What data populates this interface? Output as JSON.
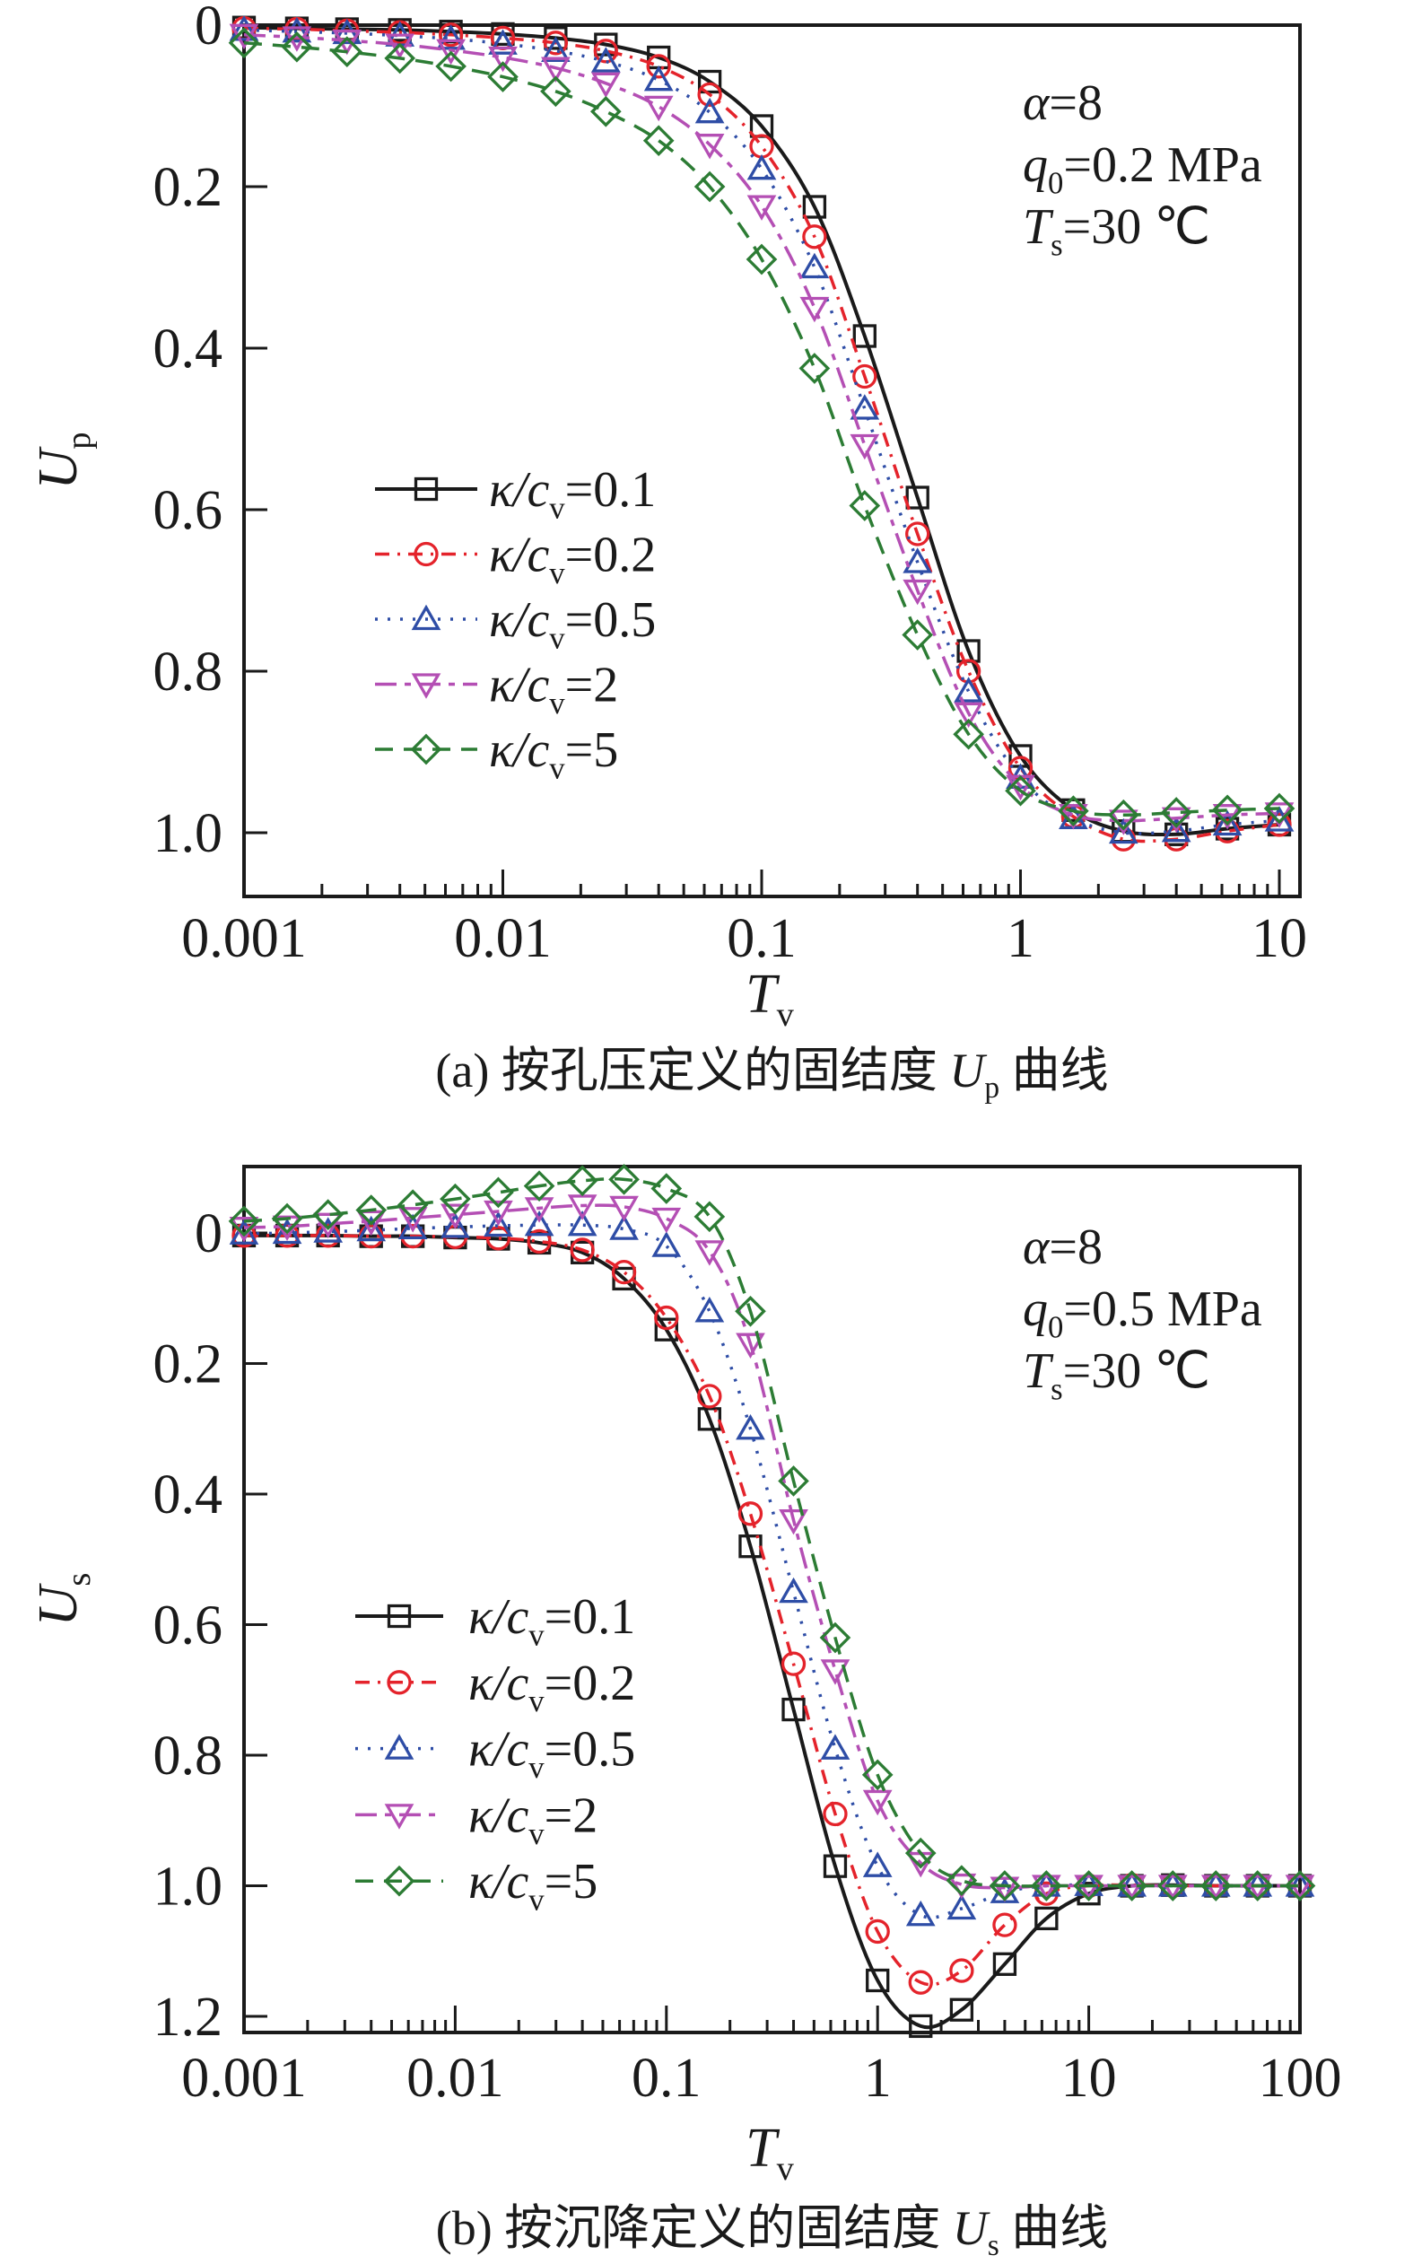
{
  "page": {
    "background": "#ffffff",
    "text_color": "#1a1a1a"
  },
  "chart_data": [
    {
      "type": "line",
      "id": "a",
      "xscale": "log",
      "xlabel": {
        "text": "Tv",
        "parts": [
          {
            "t": "T",
            "i": true
          },
          {
            "t": "v",
            "sub": true
          }
        ]
      },
      "ylabel": {
        "text": "Up",
        "parts": [
          {
            "t": "U",
            "i": true
          },
          {
            "t": "p",
            "sub": true
          }
        ]
      },
      "xlim": [
        0.001,
        12
      ],
      "ylim_top_to_bottom": [
        0,
        1.08
      ],
      "grid": false,
      "x_ticks": {
        "values": [
          0.001,
          0.01,
          0.1,
          1,
          10
        ],
        "labels": [
          "0.001",
          "0.01",
          "0.1",
          "1",
          "10"
        ]
      },
      "y_ticks": {
        "values": [
          0,
          0.2,
          0.4,
          0.6,
          0.8,
          1.0
        ],
        "labels": [
          "0",
          "0.2",
          "0.4",
          "0.6",
          "0.8",
          "1.0"
        ]
      },
      "annotation": {
        "lines": [
          {
            "text": "α=8",
            "parts": [
              {
                "t": "α",
                "i": true
              },
              {
                "t": "=8"
              }
            ]
          },
          {
            "text": "q0=0.2 MPa",
            "parts": [
              {
                "t": "q",
                "i": true
              },
              {
                "t": "0",
                "sub": true
              },
              {
                "t": "=0.2 MPa"
              }
            ]
          },
          {
            "text": "Ts=30 ℃",
            "parts": [
              {
                "t": "T",
                "i": true
              },
              {
                "t": "s",
                "sub": true
              },
              {
                "t": "=30 ℃"
              }
            ]
          }
        ]
      },
      "legend_position": "center-left",
      "caption": {
        "prefix": "(a) 按孔压定义的固结度 ",
        "var": "U",
        "var_sub": "p",
        "suffix": " 曲线"
      },
      "x": [
        0.001,
        0.0016,
        0.0025,
        0.004,
        0.0063,
        0.01,
        0.016,
        0.025,
        0.04,
        0.063,
        0.1,
        0.16,
        0.25,
        0.4,
        0.63,
        1,
        1.6,
        2.5,
        4,
        6.3,
        10
      ],
      "series": [
        {
          "name": "κ/cv=0.1",
          "label": {
            "pre": "κ/c",
            "sub": "v",
            "val": "=0.1"
          },
          "color": "#1a1a1a",
          "marker": "square",
          "dash": "solid",
          "y": [
            0.003,
            0.004,
            0.005,
            0.006,
            0.008,
            0.011,
            0.016,
            0.024,
            0.04,
            0.07,
            0.125,
            0.225,
            0.385,
            0.585,
            0.775,
            0.905,
            0.972,
            0.998,
            1.002,
            0.995,
            0.99
          ]
        },
        {
          "name": "κ/cv=0.2",
          "label": {
            "pre": "κ/c",
            "sub": "v",
            "val": "=0.2"
          },
          "color": "#e4232b",
          "marker": "circle",
          "dash": "dashdot",
          "y": [
            0.004,
            0.005,
            0.007,
            0.009,
            0.012,
            0.016,
            0.022,
            0.032,
            0.051,
            0.086,
            0.15,
            0.262,
            0.435,
            0.63,
            0.8,
            0.92,
            0.98,
            1.008,
            1.008,
            0.998,
            0.99
          ]
        },
        {
          "name": "κ/cv=0.5",
          "label": {
            "pre": "κ/c",
            "sub": "v",
            "val": "=0.5"
          },
          "color": "#2e4da6",
          "marker": "triangle-up",
          "dash": "dot",
          "y": [
            0.006,
            0.008,
            0.01,
            0.013,
            0.017,
            0.023,
            0.032,
            0.045,
            0.068,
            0.108,
            0.178,
            0.3,
            0.475,
            0.665,
            0.825,
            0.932,
            0.982,
            1.0,
            0.998,
            0.99,
            0.985
          ]
        },
        {
          "name": "κ/cv=2",
          "label": {
            "pre": "κ/c",
            "sub": "v",
            "val": "=2"
          },
          "color": "#b44fb4",
          "marker": "triangle-down",
          "dash": "longdashdot",
          "y": [
            0.012,
            0.015,
            0.019,
            0.024,
            0.031,
            0.04,
            0.053,
            0.072,
            0.101,
            0.148,
            0.224,
            0.35,
            0.52,
            0.7,
            0.852,
            0.942,
            0.978,
            0.985,
            0.982,
            0.978,
            0.976
          ]
        },
        {
          "name": "κ/cv=5",
          "label": {
            "pre": "κ/c",
            "sub": "v",
            "val": "=5"
          },
          "color": "#2c7c34",
          "marker": "diamond",
          "dash": "dash",
          "y": [
            0.022,
            0.027,
            0.033,
            0.041,
            0.051,
            0.064,
            0.082,
            0.107,
            0.143,
            0.2,
            0.29,
            0.425,
            0.595,
            0.755,
            0.878,
            0.948,
            0.973,
            0.978,
            0.975,
            0.972,
            0.97
          ]
        }
      ]
    },
    {
      "type": "line",
      "id": "b",
      "xscale": "log",
      "xlabel": {
        "text": "Tv",
        "parts": [
          {
            "t": "T",
            "i": true
          },
          {
            "t": "v",
            "sub": true
          }
        ]
      },
      "ylabel": {
        "text": "Us",
        "parts": [
          {
            "t": "U",
            "i": true
          },
          {
            "t": "s",
            "sub": true
          }
        ]
      },
      "xlim": [
        0.001,
        100
      ],
      "ylim_top_to_bottom": [
        -0.102,
        1.225
      ],
      "grid": false,
      "x_ticks": {
        "values": [
          0.001,
          0.01,
          0.1,
          1,
          10,
          100
        ],
        "labels": [
          "0.001",
          "0.01",
          "0.1",
          "1",
          "10",
          "100"
        ]
      },
      "y_ticks": {
        "values": [
          0,
          0.2,
          0.4,
          0.6,
          0.8,
          1.0,
          1.2
        ],
        "labels": [
          "0",
          "0.2",
          "0.4",
          "0.6",
          "0.8",
          "1.0",
          "1.2"
        ]
      },
      "annotation": {
        "lines": [
          {
            "text": "α=8",
            "parts": [
              {
                "t": "α",
                "i": true
              },
              {
                "t": "=8"
              }
            ]
          },
          {
            "text": "q0=0.5 MPa",
            "parts": [
              {
                "t": "q",
                "i": true
              },
              {
                "t": "0",
                "sub": true
              },
              {
                "t": "=0.5 MPa"
              }
            ]
          },
          {
            "text": "Ts=30 ℃",
            "parts": [
              {
                "t": "T",
                "i": true
              },
              {
                "t": "s",
                "sub": true
              },
              {
                "t": "=30 ℃"
              }
            ]
          }
        ]
      },
      "legend_position": "center-left",
      "caption": {
        "prefix": "(b) 按沉降定义的固结度 ",
        "var": "U",
        "var_sub": "s",
        "suffix": " 曲线"
      },
      "x": [
        0.001,
        0.0016,
        0.0025,
        0.004,
        0.0063,
        0.01,
        0.016,
        0.025,
        0.04,
        0.063,
        0.1,
        0.16,
        0.25,
        0.4,
        0.63,
        1,
        1.6,
        2.5,
        4,
        6.3,
        10,
        16,
        25,
        40,
        63,
        100
      ],
      "series": [
        {
          "name": "κ/cv=0.1",
          "label": {
            "pre": "κ/c",
            "sub": "v",
            "val": "=0.1"
          },
          "color": "#1a1a1a",
          "marker": "square",
          "dash": "solid",
          "y": [
            0.004,
            0.004,
            0.004,
            0.005,
            0.005,
            0.007,
            0.009,
            0.015,
            0.03,
            0.07,
            0.148,
            0.285,
            0.48,
            0.73,
            0.97,
            1.145,
            1.215,
            1.19,
            1.12,
            1.05,
            1.012,
            1.0,
            0.999,
            1.0,
            1.0,
            1.0
          ]
        },
        {
          "name": "κ/cv=0.2",
          "label": {
            "pre": "κ/c",
            "sub": "v",
            "val": "=0.2"
          },
          "color": "#e4232b",
          "marker": "circle",
          "dash": "dashdot",
          "y": [
            0.004,
            0.004,
            0.004,
            0.005,
            0.005,
            0.006,
            0.008,
            0.013,
            0.026,
            0.06,
            0.13,
            0.25,
            0.43,
            0.66,
            0.89,
            1.07,
            1.148,
            1.13,
            1.06,
            1.012,
            1.0,
            0.999,
            1.0,
            1.0,
            1.0,
            1.0
          ]
        },
        {
          "name": "κ/cv=0.5",
          "label": {
            "pre": "κ/c",
            "sub": "v",
            "val": "=0.5"
          },
          "color": "#2e4da6",
          "marker": "triangle-up",
          "dash": "dot",
          "y": [
            0.001,
            0.0,
            -0.002,
            -0.004,
            -0.007,
            -0.009,
            -0.011,
            -0.012,
            -0.012,
            -0.006,
            0.02,
            0.12,
            0.3,
            0.55,
            0.79,
            0.97,
            1.045,
            1.035,
            1.01,
            1.0,
            0.999,
            1.0,
            1.0,
            1.0,
            1.0,
            1.0
          ]
        },
        {
          "name": "κ/cv=2",
          "label": {
            "pre": "κ/c",
            "sub": "v",
            "val": "=2"
          },
          "color": "#b44fb4",
          "marker": "triangle-down",
          "dash": "longdashdot",
          "y": [
            -0.008,
            -0.01,
            -0.014,
            -0.018,
            -0.023,
            -0.028,
            -0.033,
            -0.038,
            -0.042,
            -0.04,
            -0.022,
            0.028,
            0.17,
            0.44,
            0.67,
            0.87,
            0.965,
            0.998,
            1.003,
            1.0,
            1.0,
            1.0,
            1.0,
            1.0,
            1.0,
            1.0
          ]
        },
        {
          "name": "κ/cv=5",
          "label": {
            "pre": "κ/c",
            "sub": "v",
            "val": "=5"
          },
          "color": "#2c7c34",
          "marker": "diamond",
          "dash": "dash",
          "y": [
            -0.018,
            -0.022,
            -0.028,
            -0.035,
            -0.043,
            -0.052,
            -0.062,
            -0.072,
            -0.08,
            -0.082,
            -0.068,
            -0.025,
            0.12,
            0.38,
            0.62,
            0.83,
            0.95,
            0.992,
            1.0,
            1.0,
            1.0,
            1.0,
            1.0,
            1.0,
            1.0,
            1.0
          ]
        }
      ]
    }
  ]
}
